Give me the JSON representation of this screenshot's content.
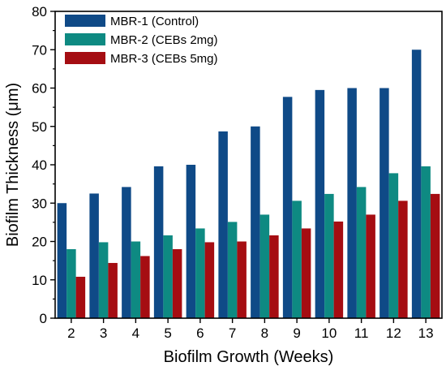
{
  "chart_data": {
    "type": "bar",
    "title": "",
    "xlabel": "Biofilm Growth (Weeks)",
    "ylabel": "Biofilm Thickness (μm)",
    "ylim": [
      0,
      80
    ],
    "yticks": [
      0,
      10,
      20,
      30,
      40,
      50,
      60,
      70,
      80
    ],
    "grid": false,
    "legend_position": "top-left",
    "categories": [
      "2",
      "3",
      "4",
      "5",
      "6",
      "7",
      "8",
      "9",
      "10",
      "11",
      "12",
      "13"
    ],
    "series": [
      {
        "name": "MBR-1 (Control)",
        "color": "#0f4a87",
        "values": [
          30,
          32.5,
          34.2,
          39.6,
          40,
          48.7,
          50,
          57.7,
          59.5,
          60,
          60,
          70
        ]
      },
      {
        "name": "MBR-2 (CEBs 2mg)",
        "color": "#0e8a82",
        "values": [
          18,
          19.8,
          20,
          21.6,
          23.4,
          25.1,
          27,
          30.6,
          32.4,
          34.2,
          37.8,
          39.6
        ]
      },
      {
        "name": "MBR-3 (CEBs 5mg)",
        "color": "#a50d12",
        "values": [
          10.8,
          14.4,
          16.2,
          18,
          19.8,
          20,
          21.6,
          23.4,
          25.2,
          27,
          30.6,
          32.4
        ]
      }
    ]
  }
}
